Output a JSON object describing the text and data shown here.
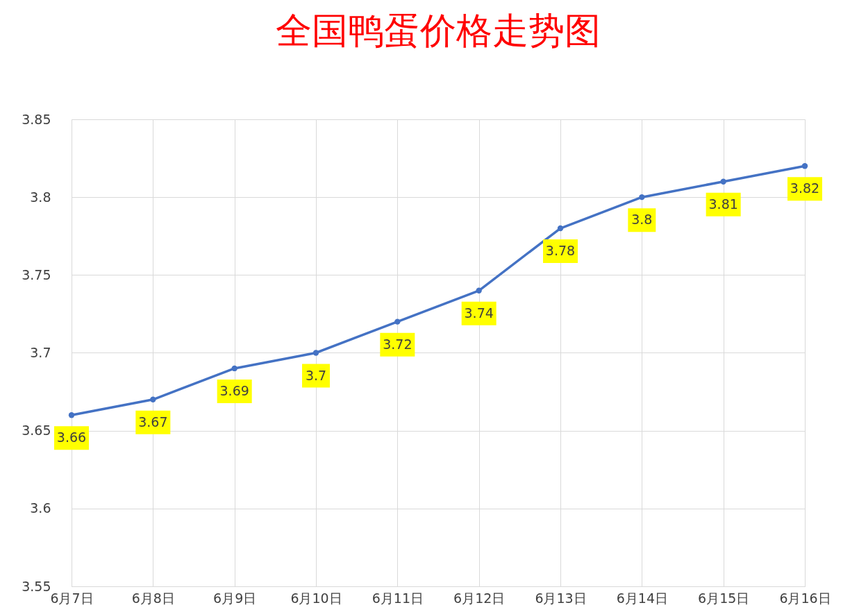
{
  "chart_data": {
    "type": "line",
    "title": "全国鸭蛋价格走势图",
    "categories": [
      "6月7日",
      "6月8日",
      "6月9日",
      "6月10日",
      "6月11日",
      "6月12日",
      "6月13日",
      "6月14日",
      "6月15日",
      "6月16日"
    ],
    "series": [
      {
        "color": "#4472c4",
        "values": [
          3.66,
          3.67,
          3.69,
          3.7,
          3.72,
          3.74,
          3.78,
          3.8,
          3.81,
          3.82
        ]
      }
    ],
    "ylim": [
      3.55,
      3.85
    ],
    "yticks": [
      3.55,
      3.6,
      3.65,
      3.7,
      3.75,
      3.8,
      3.85
    ],
    "grid": true,
    "marker": "circle",
    "line_style": "solid",
    "data_labels": true
  }
}
